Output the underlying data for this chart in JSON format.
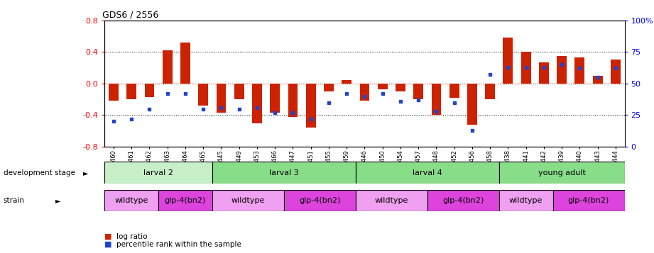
{
  "title": "GDS6 / 2556",
  "samples": [
    "GSM460",
    "GSM461",
    "GSM462",
    "GSM463",
    "GSM464",
    "GSM465",
    "GSM445",
    "GSM449",
    "GSM453",
    "GSM466",
    "GSM447",
    "GSM451",
    "GSM455",
    "GSM459",
    "GSM446",
    "GSM450",
    "GSM454",
    "GSM457",
    "GSM448",
    "GSM452",
    "GSM456",
    "GSM458",
    "GSM438",
    "GSM441",
    "GSM442",
    "GSM439",
    "GSM440",
    "GSM443",
    "GSM444"
  ],
  "log_ratio": [
    -0.22,
    -0.2,
    -0.17,
    0.42,
    0.52,
    -0.28,
    -0.37,
    -0.2,
    -0.5,
    -0.37,
    -0.42,
    -0.56,
    -0.1,
    0.04,
    -0.22,
    -0.07,
    -0.1,
    -0.2,
    -0.4,
    -0.18,
    -0.52,
    -0.2,
    0.58,
    0.4,
    0.27,
    0.35,
    0.33,
    0.1,
    0.3
  ],
  "percentile": [
    20,
    22,
    30,
    42,
    42,
    30,
    31,
    30,
    31,
    27,
    27,
    22,
    35,
    42,
    40,
    42,
    36,
    37,
    28,
    35,
    13,
    57,
    63,
    63,
    63,
    65,
    62,
    55,
    62
  ],
  "ylim": [
    -0.8,
    0.8
  ],
  "yticks_left": [
    -0.8,
    -0.4,
    0.0,
    0.4,
    0.8
  ],
  "yticks_right": [
    0,
    25,
    50,
    75,
    100
  ],
  "bar_color": "#cc2200",
  "dot_color": "#2244cc",
  "dev_stages": [
    {
      "label": "larval 2",
      "start": 0,
      "end": 6,
      "color": "#c8f0c8"
    },
    {
      "label": "larval 3",
      "start": 6,
      "end": 14,
      "color": "#88dd88"
    },
    {
      "label": "larval 4",
      "start": 14,
      "end": 22,
      "color": "#88dd88"
    },
    {
      "label": "young adult",
      "start": 22,
      "end": 29,
      "color": "#88dd88"
    }
  ],
  "strains": [
    {
      "label": "wildtype",
      "start": 0,
      "end": 3,
      "color": "#f0a0f0"
    },
    {
      "label": "glp-4(bn2)",
      "start": 3,
      "end": 6,
      "color": "#dd44dd"
    },
    {
      "label": "wildtype",
      "start": 6,
      "end": 10,
      "color": "#f0a0f0"
    },
    {
      "label": "glp-4(bn2)",
      "start": 10,
      "end": 14,
      "color": "#dd44dd"
    },
    {
      "label": "wildtype",
      "start": 14,
      "end": 18,
      "color": "#f0a0f0"
    },
    {
      "label": "glp-4(bn2)",
      "start": 18,
      "end": 22,
      "color": "#dd44dd"
    },
    {
      "label": "wildtype",
      "start": 22,
      "end": 25,
      "color": "#f0a0f0"
    },
    {
      "label": "glp-4(bn2)",
      "start": 25,
      "end": 29,
      "color": "#dd44dd"
    }
  ],
  "background_color": "#ffffff",
  "zero_line_color": "#cc2200"
}
